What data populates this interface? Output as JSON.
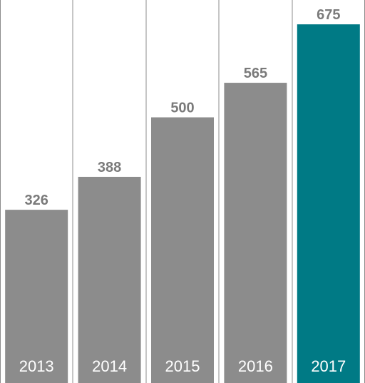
{
  "chart_data": {
    "type": "bar",
    "categories": [
      "2013",
      "2014",
      "2015",
      "2016",
      "2017"
    ],
    "values": [
      326,
      388,
      500,
      565,
      675
    ],
    "title": "",
    "xlabel": "",
    "ylabel": "",
    "ylim": [
      0,
      700
    ],
    "grid": false,
    "legend": "none",
    "colors": {
      "default_bar": "#8c8c8c",
      "highlight_bar": "#007a85"
    },
    "highlight_index": 4
  }
}
